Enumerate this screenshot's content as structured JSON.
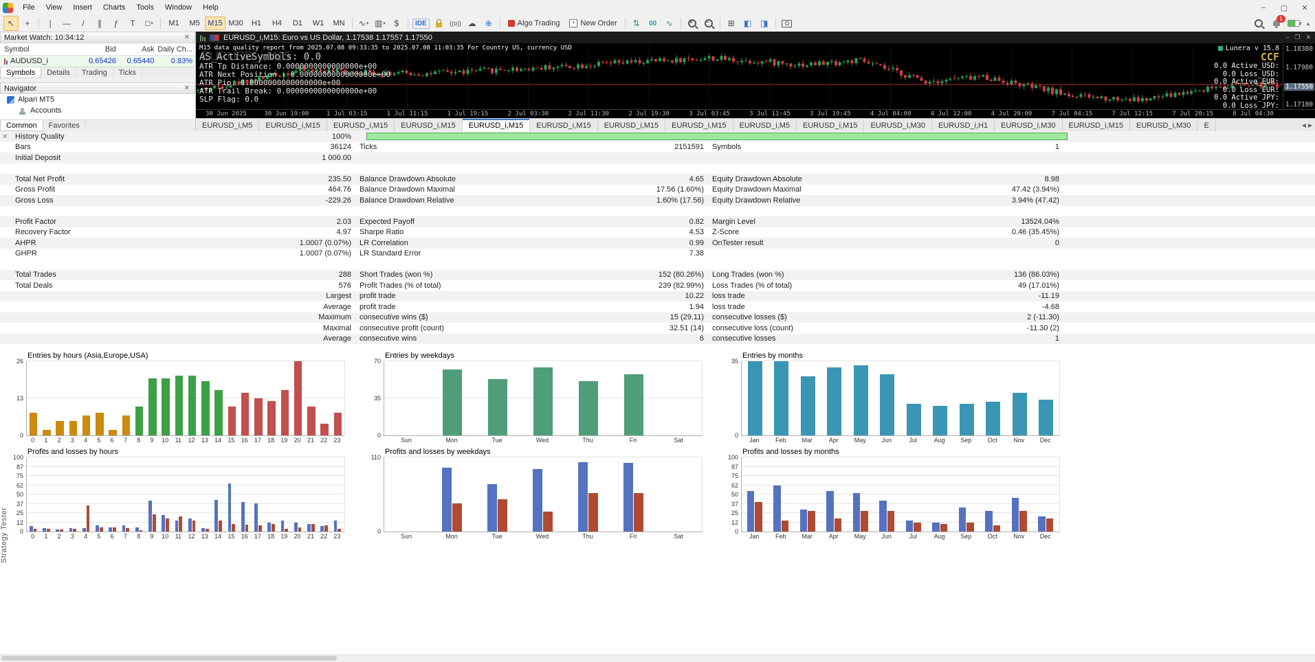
{
  "menu": {
    "items": [
      "File",
      "View",
      "Insert",
      "Charts",
      "Tools",
      "Window",
      "Help"
    ]
  },
  "toolbar": {
    "tools": [
      {
        "name": "pointer-tool",
        "glyph": "↖",
        "active": true
      },
      {
        "name": "crosshair-tool",
        "glyph": "+"
      },
      {
        "sep": true
      },
      {
        "name": "vertical-line-tool",
        "glyph": "|"
      },
      {
        "name": "horizontal-line-tool",
        "glyph": "—"
      },
      {
        "name": "trendline-tool",
        "glyph": "/"
      },
      {
        "name": "channel-tool",
        "glyph": "∥"
      },
      {
        "name": "fibonacci-tool",
        "glyph": "ƒ"
      },
      {
        "name": "text-tool",
        "glyph": "T"
      },
      {
        "name": "shapes-tool",
        "glyph": "□",
        "dropdown": true
      },
      {
        "sep": true
      }
    ],
    "timeframes": [
      "M1",
      "M5",
      "M15",
      "M30",
      "H1",
      "H4",
      "D1",
      "W1",
      "MN"
    ],
    "active_timeframe": "M15",
    "chart_type_tools": [
      {
        "name": "line-chart-type",
        "glyph": "∿",
        "dropdown": true
      },
      {
        "name": "candle-chart-type",
        "glyph": "▥",
        "dropdown": true
      },
      {
        "name": "currency-tool",
        "glyph": "$"
      }
    ],
    "ide_label": "IDE",
    "algo_trading_label": "Algo Trading",
    "new_order_label": "New Order",
    "notification_count": "1"
  },
  "market_watch": {
    "title": "Market Watch: 10:34:12",
    "columns": [
      "Symbol",
      "Bid",
      "Ask",
      "Daily Ch..."
    ],
    "rows": [
      {
        "symbol": "AUDUSD_i",
        "bid": "0.65426",
        "ask": "0.65440",
        "change": "0.83%"
      }
    ],
    "tabs": [
      "Symbols",
      "Details",
      "Trading",
      "Ticks"
    ],
    "active_tab": "Symbols"
  },
  "navigator": {
    "title": "Navigator",
    "items": [
      {
        "label": "Alpari MT5",
        "level": 0
      },
      {
        "label": "Accounts",
        "level": 1
      }
    ],
    "tabs": [
      "Common",
      "Favorites"
    ],
    "active_tab": "Common"
  },
  "chart_window": {
    "title": "EURUSD_i,M15: Euro vs US Dollar, 1.17538 1.17557 1.17550",
    "watermark": "EURUSD_i,M15",
    "info_line": "M15 data quality report from 2025.07.08 09:33:35 to 2025.07.08 11:03:35 For Country US, currency USD",
    "indicator_big_line": "AS_ActiveSymbols: 0.0",
    "indicator_lines": [
      "ATR Tp Distance: 0.0000000000000000e+00",
      "ATR Next Position : 0.0000000000000000e+00",
      "ATR Pip: 0.0000000000000000e+00",
      "ATR Trail Break: 0.0000000000000000e+00",
      "SLP Flag: 0.0"
    ],
    "right_overlay": {
      "ea_name": "Lunera v 15.8",
      "badge": "CCF",
      "lines": [
        "0.0 Active_USD:",
        "0.0 Loss_USD:",
        "0.0 Active_EUR:",
        "0.0 Loss_EUR:",
        "0.0 Active_JPY:",
        "0.0 Loss_JPY:"
      ]
    },
    "price_labels": [
      "1.18380",
      "1.17980",
      "1.17550",
      "1.17180"
    ],
    "current_price": "1.17550",
    "time_labels": [
      "30 Jun 2025",
      "30 Jun 19:00",
      "1 Jul 03:15",
      "1 Jul 11:15",
      "1 Jul 19:15",
      "2 Jul 03:30",
      "2 Jul 11:30",
      "2 Jul 19:30",
      "3 Jul 03:45",
      "3 Jul 11:45",
      "3 Jul 19:45",
      "4 Jul 04:00",
      "4 Jul 12:00",
      "4 Jul 20:00",
      "7 Jul 04:15",
      "7 Jul 12:15",
      "7 Jul 20:15",
      "8 Jul 04:30"
    ],
    "colors": {
      "bull": "#21a05a",
      "bear": "#cf3f3f",
      "price_line": "#b03030"
    }
  },
  "chart_tabs": {
    "tabs": [
      "EURUSD_i,M5",
      "EURUSD_i,M15",
      "EURUSD_i,M15",
      "EURUSD_i,M15",
      "EURUSD_i,M15",
      "EURUSD_i,M15",
      "EURUSD_i,M15",
      "EURUSD_i,M15",
      "EURUSD_i,M5",
      "EURUSD_i,M15",
      "EURUSD_i,M30",
      "EURUSD_i,H1",
      "EURUSD_i,M30",
      "EURUSD_i,M15",
      "EURUSD_i,M30",
      "E"
    ],
    "active_index": 4
  },
  "report": {
    "rows": [
      {
        "c1l": "History Quality",
        "c1v": "100%",
        "progress": true,
        "shaded": true
      },
      {
        "c1l": "Bars",
        "c1v": "36124",
        "c2l": "Ticks",
        "c2v": "2151591",
        "c3l": "Symbols",
        "c3v": "1",
        "shaded": false
      },
      {
        "c1l": "Initial Deposit",
        "c1v": "1 000.00",
        "shaded": true
      },
      {
        "gap": true
      },
      {
        "c1l": "Total Net Profit",
        "c1v": "235.50",
        "c2l": "Balance Drawdown Absolute",
        "c2v": "4.65",
        "c3l": "Equity Drawdown Absolute",
        "c3v": "8.98",
        "shaded": true
      },
      {
        "c1l": "Gross Profit",
        "c1v": "464.76",
        "c2l": "Balance Drawdown Maximal",
        "c2v": "17.56 (1.60%)",
        "c3l": "Equity Drawdown Maximal",
        "c3v": "47.42 (3.94%)",
        "shaded": false
      },
      {
        "c1l": "Gross Loss",
        "c1v": "-229.26",
        "c2l": "Balance Drawdown Relative",
        "c2v": "1.60% (17.56)",
        "c3l": "Equity Drawdown Relative",
        "c3v": "3.94% (47.42)",
        "shaded": true
      },
      {
        "gap": true
      },
      {
        "c1l": "Profit Factor",
        "c1v": "2.03",
        "c2l": "Expected Payoff",
        "c2v": "0.82",
        "c3l": "Margin Level",
        "c3v": "13524.04%",
        "shaded": true
      },
      {
        "c1l": "Recovery Factor",
        "c1v": "4.97",
        "c2l": "Sharpe Ratio",
        "c2v": "4.53",
        "c3l": "Z-Score",
        "c3v": "0.46 (35.45%)",
        "shaded": false
      },
      {
        "c1l": "AHPR",
        "c1v": "1.0007 (0.07%)",
        "c2l": "LR Correlation",
        "c2v": "0.99",
        "c3l": "OnTester result",
        "c3v": "0",
        "shaded": true
      },
      {
        "c1l": "GHPR",
        "c1v": "1.0007 (0.07%)",
        "c2l": "LR Standard Error",
        "c2v": "7.38",
        "shaded": false
      },
      {
        "gap": true
      },
      {
        "c1l": "Total Trades",
        "c1v": "288",
        "c2l": "Short Trades (won %)",
        "c2v": "152 (80.26%)",
        "c3l": "Long Trades (won %)",
        "c3v": "136 (86.03%)",
        "shaded": true
      },
      {
        "c1l": "Total Deals",
        "c1v": "576",
        "c2l": "Profit Trades (% of total)",
        "c2v": "239 (82.99%)",
        "c3l": "Loss Trades (% of total)",
        "c3v": "49 (17.01%)",
        "shaded": false
      },
      {
        "c1v": "Largest",
        "c2l": "profit trade",
        "c2v": "10.22",
        "c3l": "loss trade",
        "c3v": "-11.19",
        "shaded": true
      },
      {
        "c1v": "Average",
        "c2l": "profit trade",
        "c2v": "1.94",
        "c3l": "loss trade",
        "c3v": "-4.68",
        "shaded": false
      },
      {
        "c1v": "Maximum",
        "c2l": "consecutive wins ($)",
        "c2v": "15 (29.11)",
        "c3l": "consecutive losses ($)",
        "c3v": "2 (-11.30)",
        "shaded": true
      },
      {
        "c1v": "Maximal",
        "c2l": "consecutive profit (count)",
        "c2v": "32.51 (14)",
        "c3l": "consecutive loss (count)",
        "c3v": "-11.30 (2)",
        "shaded": false
      },
      {
        "c1v": "Average",
        "c2l": "consecutive wins",
        "c2v": "6",
        "c3l": "consecutive losses",
        "c3v": "1",
        "shaded": true
      }
    ]
  },
  "chart_data": [
    {
      "type": "bar",
      "title": "Entries by hours (Asia,Europe,USA)",
      "categories": [
        "0",
        "1",
        "2",
        "3",
        "4",
        "5",
        "6",
        "7",
        "8",
        "9",
        "10",
        "11",
        "12",
        "13",
        "14",
        "15",
        "16",
        "17",
        "18",
        "19",
        "20",
        "21",
        "22",
        "23"
      ],
      "values": [
        8,
        2,
        5,
        5,
        7,
        8,
        2,
        7,
        10,
        20,
        20,
        21,
        21,
        19,
        16,
        10,
        15,
        13,
        12,
        16,
        26,
        10,
        4,
        8
      ],
      "bar_colors": [
        "#cc8a0e",
        "#cc8a0e",
        "#cc8a0e",
        "#cc8a0e",
        "#cc8a0e",
        "#cc8a0e",
        "#cc8a0e",
        "#cc8a0e",
        "#3da045",
        "#3da045",
        "#3da045",
        "#3da045",
        "#3da045",
        "#3da045",
        "#3da045",
        "#c0504d",
        "#c0504d",
        "#c0504d",
        "#c0504d",
        "#c0504d",
        "#c0504d",
        "#c0504d",
        "#c0504d",
        "#c0504d"
      ],
      "ylabels": [
        0,
        13,
        26
      ],
      "ymax": 26,
      "bar_frac": 0.6
    },
    {
      "type": "bar",
      "title": "Entries by weekdays",
      "categories": [
        "Sun",
        "Mon",
        "Tue",
        "Wed",
        "Thu",
        "Fri",
        "Sat"
      ],
      "values": [
        0,
        62,
        53,
        64,
        51,
        58,
        0
      ],
      "color": "#4f9e79",
      "ylabels": [
        0,
        35,
        70
      ],
      "ymax": 70,
      "bar_frac": 0.42
    },
    {
      "type": "bar",
      "title": "Entries by months",
      "categories": [
        "Jan",
        "Feb",
        "Mar",
        "Apr",
        "May",
        "Jun",
        "Jul",
        "Aug",
        "Sep",
        "Oct",
        "Nov",
        "Dec"
      ],
      "values": [
        35,
        35,
        28,
        32,
        33,
        29,
        15,
        14,
        15,
        16,
        20,
        17
      ],
      "color": "#3a96b4",
      "ylabels": [
        0,
        35
      ],
      "ymax": 35,
      "bar_frac": 0.55
    },
    {
      "type": "bar",
      "title": "Profits and losses by hours",
      "categories": [
        "0",
        "1",
        "2",
        "3",
        "4",
        "5",
        "6",
        "7",
        "8",
        "9",
        "10",
        "11",
        "12",
        "13",
        "14",
        "15",
        "16",
        "17",
        "18",
        "19",
        "20",
        "21",
        "22",
        "23"
      ],
      "series": [
        {
          "name": "profit",
          "color": "#5572c0",
          "values": [
            7,
            5,
            3,
            5,
            5,
            8,
            6,
            8,
            6,
            42,
            22,
            15,
            18,
            5,
            43,
            65,
            40,
            38,
            12,
            15,
            12,
            10,
            7,
            15
          ]
        },
        {
          "name": "loss",
          "color": "#b04a33",
          "values": [
            4,
            4,
            3,
            4,
            35,
            6,
            6,
            5,
            2,
            23,
            18,
            20,
            15,
            4,
            15,
            10,
            9,
            8,
            10,
            4,
            6,
            10,
            8,
            4
          ]
        }
      ],
      "ylabels": [
        0,
        12,
        25,
        37,
        50,
        62,
        75,
        87,
        100
      ],
      "ymax": 100,
      "bar_frac": 0.3
    },
    {
      "type": "bar",
      "title": "Profits and losses by weekdays",
      "categories": [
        "Sun",
        "Mon",
        "Tue",
        "Wed",
        "Thu",
        "Fri",
        "Sat"
      ],
      "series": [
        {
          "name": "profit",
          "color": "#5572c0",
          "values": [
            0,
            95,
            70,
            93,
            103,
            102,
            0
          ]
        },
        {
          "name": "loss",
          "color": "#b04a33",
          "values": [
            0,
            42,
            48,
            30,
            57,
            57,
            0
          ]
        }
      ],
      "ylabels": [
        0,
        110
      ],
      "ymax": 110,
      "bar_frac": 0.22
    },
    {
      "type": "bar",
      "title": "Profits and losses by months",
      "categories": [
        "Jan",
        "Feb",
        "Mar",
        "Apr",
        "May",
        "Jun",
        "Jul",
        "Aug",
        "Sep",
        "Oct",
        "Nov",
        "Dec"
      ],
      "series": [
        {
          "name": "profit",
          "color": "#5572c0",
          "values": [
            55,
            62,
            30,
            55,
            52,
            42,
            15,
            12,
            32,
            28,
            45,
            20
          ]
        },
        {
          "name": "loss",
          "color": "#b04a33",
          "values": [
            40,
            15,
            28,
            18,
            28,
            28,
            12,
            10,
            12,
            8,
            28,
            18
          ]
        }
      ],
      "ylabels": [
        0,
        12,
        25,
        37,
        50,
        62,
        75,
        87,
        100
      ],
      "ymax": 100,
      "bar_frac": 0.3
    }
  ],
  "tester_tab_label": "Strategy Tester",
  "window_controls": {
    "minimize": "–",
    "maximize": "▢",
    "close": "✕"
  }
}
